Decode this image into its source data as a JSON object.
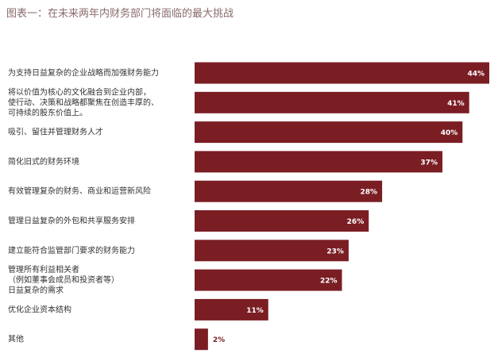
{
  "title": "图表一：在未来两年内财务部门将面临的最大挑战",
  "colors": {
    "bar": "#7a1e24",
    "label_inside": "#ffffff",
    "label_outside": "#7a1e24",
    "title": "#8a6b6b"
  },
  "chart_data": {
    "type": "bar",
    "orientation": "horizontal",
    "categories": [
      [
        "为支持日益复杂的企业战略而加强财务能力"
      ],
      [
        "将以价值为核心的文化融合到企业内部，",
        "使行动、决策和战略都聚焦在创造丰厚的、",
        "可持续的股东价值上。"
      ],
      [
        "吸引、留住并管理财务人才"
      ],
      [
        "简化旧式的财务环境"
      ],
      [
        "有效管理复杂的财务、商业和运营新风险"
      ],
      [
        "管理日益复杂的外包和共享服务安排"
      ],
      [
        "建立能符合监管部门要求的财务能力"
      ],
      [
        "管理所有利益相关者",
        "（例如董事会成员和投资者等）",
        "日益复杂的需求"
      ],
      [
        "优化企业资本结构"
      ],
      [
        "其他"
      ]
    ],
    "values": [
      44,
      41,
      40,
      37,
      28,
      26,
      23,
      22,
      11,
      2
    ],
    "value_labels": [
      "44%",
      "41%",
      "40%",
      "37%",
      "28%",
      "26%",
      "23%",
      "22%",
      "11%",
      "2%"
    ],
    "xlim": [
      0,
      44
    ],
    "grid": false,
    "legend": "none"
  }
}
